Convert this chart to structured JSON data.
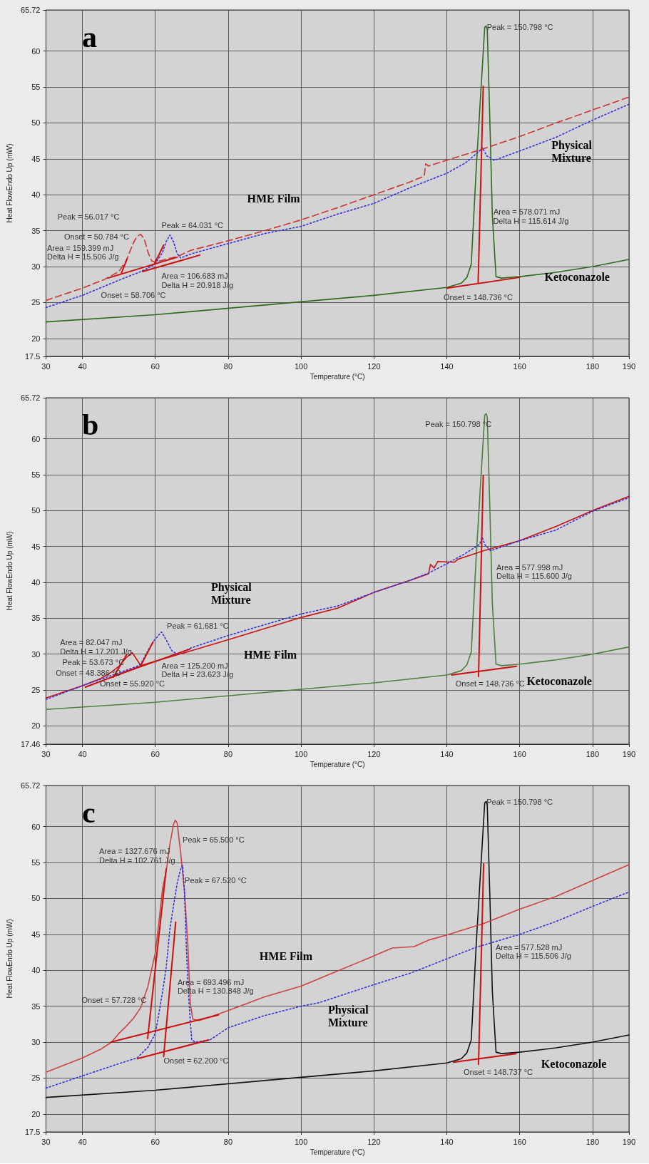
{
  "chart_data": [
    {
      "type": "line",
      "title": "a",
      "xlabel": "Temperature (°C)",
      "ylabel": "Heat FlowEndo Up (mW)",
      "xlim": [
        30,
        190
      ],
      "xticks": [
        30,
        40,
        60,
        80,
        100,
        120,
        140,
        160,
        180,
        190
      ],
      "ylim": [
        17.5,
        65.72
      ],
      "yticks": [
        17.5,
        20,
        25,
        30,
        35,
        40,
        45,
        50,
        55,
        60,
        65.72
      ],
      "grid": true,
      "series": [
        {
          "name": "Ketoconazole",
          "color": "#2e6b1e",
          "line_style": "solid",
          "x": [
            30,
            60,
            100,
            120,
            140,
            144,
            145.5,
            146.7,
            148.1,
            149.4,
            150.4,
            150.8,
            151.1,
            151.8,
            152.5,
            153.5,
            155,
            160,
            170,
            180,
            190
          ],
          "values": [
            22.3,
            23.3,
            25.1,
            26,
            27.1,
            27.7,
            28.5,
            30.3,
            43.9,
            54.9,
            63.3,
            63.5,
            63,
            50.5,
            37,
            28.6,
            28.4,
            28.6,
            29.2,
            30,
            31
          ]
        },
        {
          "name": "HME Film",
          "color": "#cc3333",
          "line_style": "dashed",
          "x": [
            30,
            40,
            46,
            50,
            52,
            54,
            55,
            56,
            57,
            58,
            59,
            60,
            62,
            66,
            70,
            80,
            90,
            100,
            110,
            120,
            130,
            133.8,
            134.2,
            135,
            140,
            145,
            150,
            160,
            170,
            180,
            190
          ],
          "values": [
            25.3,
            27,
            28.2,
            29.3,
            30.8,
            33.3,
            34.2,
            34.5,
            33.8,
            32,
            30.8,
            30.6,
            30.9,
            31.4,
            32.3,
            33.6,
            35,
            36.5,
            38.2,
            40,
            41.8,
            42.6,
            44.3,
            44,
            44.8,
            45.6,
            46.4,
            48.1,
            50,
            51.8,
            53.6
          ]
        },
        {
          "name": "Physical Mixture",
          "color": "#3333dd",
          "line_style": "dotted",
          "x": [
            30,
            40,
            50,
            56,
            58,
            60,
            62,
            63,
            64,
            65,
            66,
            67,
            70,
            80,
            90,
            100,
            110,
            120,
            130,
            140,
            145,
            149,
            149.7,
            151,
            153,
            160,
            170,
            180,
            190
          ],
          "values": [
            24.3,
            26,
            28.1,
            29.3,
            29.8,
            30.4,
            32,
            33.5,
            34.4,
            33.5,
            31.8,
            31.2,
            31.8,
            33.2,
            34.6,
            35.6,
            37.3,
            38.8,
            41,
            43,
            44.4,
            46.1,
            46.6,
            45.4,
            44.8,
            46.1,
            48,
            50.4,
            52.6
          ]
        },
        {
          "color": "#cc1010",
          "line_style": "solid",
          "x": [
            47,
            66
          ],
          "values": [
            28.4,
            31.3
          ]
        },
        {
          "color": "#cc1010",
          "line_style": "solid",
          "x": [
            56.5,
            72.2
          ],
          "values": [
            29.3,
            31.6
          ]
        },
        {
          "color": "#cc1010",
          "line_style": "solid",
          "x": [
            50.7,
            52.3
          ],
          "values": [
            29.1,
            31.1
          ]
        },
        {
          "color": "#cc1010",
          "line_style": "solid",
          "x": [
            59.7,
            62.3
          ],
          "values": [
            30.3,
            33.0
          ]
        },
        {
          "color": "#cc1010",
          "line_style": "solid",
          "x": [
            140,
            160
          ],
          "values": [
            27.0,
            28.5
          ]
        },
        {
          "color": "#cc1010",
          "line_style": "solid",
          "x": [
            148.6,
            150.0
          ],
          "values": [
            27.8,
            55.1
          ]
        }
      ],
      "annotations": [
        "Peak = 56.017 °C",
        "Onset = 50.784 °C",
        "Area = 159.399 mJ",
        "Delta H = 15.506 J/g",
        "Peak = 64.031 °C",
        "Area = 106.683 mJ",
        "Delta H = 20.918 J/g",
        "Onset = 58.706 °C",
        "Peak = 150.798 °C",
        "Area = 578.071 mJ",
        "Delta H = 115.614 J/g",
        "Onset = 148.736 °C"
      ]
    },
    {
      "type": "line",
      "title": "b",
      "xlabel": "Temperature (°C)",
      "ylabel": "Heat FlowEndo Up (mW)",
      "xlim": [
        30,
        190
      ],
      "xticks": [
        30,
        40,
        60,
        80,
        100,
        120,
        140,
        160,
        180,
        190
      ],
      "ylim": [
        17.46,
        65.72
      ],
      "yticks": [
        17.46,
        20,
        25,
        30,
        35,
        40,
        45,
        50,
        55,
        60,
        65.72
      ],
      "grid": true,
      "series": [
        {
          "name": "Ketoconazole",
          "color": "#4f7f3f",
          "line_style": "solid",
          "x": [
            30,
            60,
            100,
            120,
            140,
            144,
            145.5,
            146.7,
            148.1,
            149.4,
            150.4,
            150.8,
            151.1,
            151.8,
            152.5,
            153.5,
            155,
            160,
            170,
            180,
            190
          ],
          "values": [
            22.3,
            23.3,
            25.1,
            26,
            27.1,
            27.7,
            28.5,
            30.3,
            43.9,
            54.9,
            63.3,
            63.5,
            63,
            50.5,
            37,
            28.6,
            28.4,
            28.6,
            29.2,
            30,
            31
          ]
        },
        {
          "name": "HME Film",
          "color": "#cc1111",
          "line_style": "solid",
          "x": [
            30,
            40,
            45,
            48,
            50,
            52,
            53.7,
            55,
            56,
            60,
            70,
            80,
            100,
            110,
            120,
            130,
            135,
            135.5,
            136.5,
            137.5,
            142,
            143,
            150,
            160,
            170,
            180,
            190
          ],
          "values": [
            23.9,
            25.6,
            26.6,
            27.5,
            28.3,
            29.5,
            30.2,
            29.2,
            28.4,
            29,
            30.5,
            32,
            35.1,
            36.4,
            38.6,
            40.3,
            41.2,
            42.5,
            42,
            42.9,
            42.8,
            43.2,
            44.4,
            45.8,
            47.8,
            50,
            52
          ]
        },
        {
          "name": "Physical Mixture",
          "color": "#3333dd",
          "line_style": "dotted",
          "x": [
            30,
            40,
            50,
            55,
            56,
            58,
            59.5,
            61.7,
            63,
            64.5,
            66,
            70,
            80,
            90,
            100,
            110,
            120,
            130,
            135,
            140,
            145,
            149,
            149.7,
            150.5,
            152,
            160,
            170,
            180,
            190
          ],
          "values": [
            23.7,
            25.6,
            27.4,
            28.3,
            28.6,
            30.5,
            31.8,
            33.1,
            32,
            30.5,
            30,
            30.9,
            32.6,
            34.1,
            35.6,
            36.7,
            38.6,
            40.3,
            41.3,
            42.6,
            44,
            45.3,
            46.3,
            45.2,
            44.4,
            45.8,
            47.3,
            49.9,
            51.8
          ]
        },
        {
          "color": "#cc1010",
          "line_style": "solid",
          "x": [
            48.4,
            69.5
          ],
          "values": [
            26.9,
            30.7
          ]
        },
        {
          "color": "#cc1010",
          "line_style": "solid",
          "x": [
            40.8,
            55.9
          ],
          "values": [
            25.4,
            28.3
          ]
        },
        {
          "color": "#cc1010",
          "line_style": "solid",
          "x": [
            48.5,
            52.2
          ],
          "values": [
            26.8,
            30.0
          ]
        },
        {
          "color": "#cc1010",
          "line_style": "solid",
          "x": [
            55.9,
            59.4
          ],
          "values": [
            28.3,
            31.7
          ]
        },
        {
          "color": "#cc1010",
          "line_style": "solid",
          "x": [
            141.3,
            159.1
          ],
          "values": [
            27.1,
            28.3
          ]
        },
        {
          "color": "#cc1010",
          "line_style": "solid",
          "x": [
            148.7,
            150.0
          ],
          "values": [
            26.9,
            54.9
          ]
        }
      ],
      "annotations": [
        "Area = 82.047 mJ",
        "Delta H = 17.201 J/g",
        "Peak = 53.673 °C",
        "Onset = 48.386 °C",
        "Onset = 55.920 °C",
        "Peak = 61.681 °C",
        "Area = 125.200 mJ",
        "Delta H = 23.623 J/g",
        "Peak = 150.798 °C",
        "Area = 577.998 mJ",
        "Delta H = 115.600 J/g",
        "Onset = 148.736 °C"
      ]
    },
    {
      "type": "line",
      "title": "c",
      "xlabel": "Temperature (°C)",
      "ylabel": "Heat FlowEndo Up (mW)",
      "xlim": [
        30,
        190
      ],
      "xticks": [
        30,
        40,
        60,
        80,
        100,
        120,
        140,
        160,
        180,
        190
      ],
      "ylim": [
        17.5,
        65.72
      ],
      "yticks": [
        17.5,
        20,
        25,
        30,
        35,
        40,
        45,
        50,
        55,
        60,
        65.72
      ],
      "grid": true,
      "series": [
        {
          "name": "Ketoconazole",
          "color": "#111111",
          "line_style": "solid",
          "x": [
            30,
            60,
            100,
            120,
            140,
            144,
            145.5,
            146.7,
            148.1,
            149.4,
            150.4,
            150.8,
            151.1,
            151.8,
            152.5,
            153.5,
            155,
            160,
            170,
            180,
            190
          ],
          "values": [
            22.3,
            23.3,
            25.1,
            26,
            27.1,
            27.7,
            28.5,
            30.3,
            43.9,
            54.9,
            63.3,
            63.5,
            63,
            50.5,
            37,
            28.6,
            28.4,
            28.6,
            29.2,
            30,
            31
          ]
        },
        {
          "name": "HME Film",
          "color": "#cc4444",
          "line_style": "solid",
          "x": [
            30,
            40,
            45,
            48,
            50,
            52,
            54,
            56,
            58,
            60,
            61,
            62,
            63,
            64,
            65,
            65.5,
            66,
            67,
            68,
            68.9,
            69.6,
            70.3,
            72,
            75,
            80,
            90,
            100,
            110,
            120,
            125,
            131,
            135,
            140,
            150,
            160,
            170,
            180,
            190
          ],
          "values": [
            25.8,
            27.8,
            29,
            30,
            31.2,
            32.2,
            33.3,
            34.8,
            37.8,
            42.4,
            46.7,
            51.4,
            53.8,
            57.5,
            60.3,
            60.9,
            60.5,
            56.2,
            51,
            44,
            35.4,
            33.2,
            33,
            33.5,
            34.4,
            36.3,
            37.8,
            39.9,
            42,
            43.1,
            43.3,
            44.2,
            44.9,
            46.5,
            48.5,
            50.3,
            52.5,
            54.7
          ]
        },
        {
          "name": "Physical Mixture",
          "color": "#3333dd",
          "line_style": "dotted",
          "x": [
            30,
            40,
            50,
            55,
            58,
            60,
            61,
            62,
            63,
            64,
            65,
            66,
            67,
            67.5,
            68,
            68.5,
            69,
            69.5,
            70,
            71,
            75,
            80,
            90,
            100,
            105,
            120,
            130,
            140,
            148,
            160,
            170,
            180,
            190
          ],
          "values": [
            23.6,
            25.3,
            27,
            27.8,
            29.3,
            31.2,
            34,
            37,
            40.4,
            45.7,
            49,
            52.1,
            54.2,
            54.6,
            51.1,
            43.7,
            37.7,
            33.7,
            30.3,
            30,
            30.3,
            32,
            33.7,
            35,
            35.5,
            38,
            39.6,
            41.6,
            43.2,
            45,
            46.8,
            48.9,
            50.9
          ]
        },
        {
          "color": "#cc1010",
          "line_style": "solid",
          "x": [
            47.8,
            77.4
          ],
          "values": [
            30.0,
            33.8
          ]
        },
        {
          "color": "#cc1010",
          "line_style": "solid",
          "x": [
            57.9,
            63.0
          ],
          "values": [
            30.5,
            54.1
          ]
        },
        {
          "color": "#cc1010",
          "line_style": "solid",
          "x": [
            55.1,
            74.7
          ],
          "values": [
            27.7,
            30.3
          ]
        },
        {
          "color": "#cc1010",
          "line_style": "solid",
          "x": [
            62.3,
            65.6
          ],
          "values": [
            28.0,
            46.7
          ]
        },
        {
          "color": "#cc1010",
          "line_style": "solid",
          "x": [
            141.8,
            159.0
          ],
          "values": [
            27.2,
            28.4
          ]
        },
        {
          "color": "#cc1010",
          "line_style": "solid",
          "x": [
            148.7,
            150.1
          ],
          "values": [
            26.9,
            54.8
          ]
        }
      ],
      "annotations": [
        "Area = 1327.676 mJ",
        "Delta H = 102.761 J/g",
        "Peak = 65.500 °C",
        "Peak = 67.520 °C",
        "Area = 693.496 mJ",
        "Delta H = 130.848 J/g",
        "Onset = 57.728 °C",
        "Onset = 62.200 °C",
        "Peak = 150.798 °C",
        "Area = 577.528 mJ",
        "Delta H = 115.506 J/g",
        "Onset = 148.737 °C"
      ]
    }
  ]
}
